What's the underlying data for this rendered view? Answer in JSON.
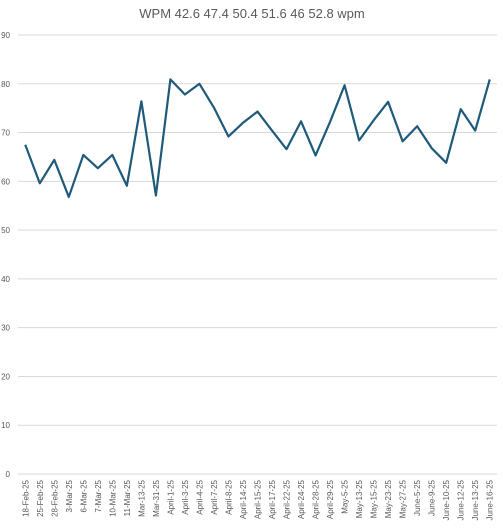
{
  "chart_data": {
    "type": "line",
    "title": "WPM 42.6 47.4 50.4 51.6 46 52.8 wpm",
    "categories": [
      "18-Feb-25",
      "25-Feb-25",
      "28-Feb-25",
      "3-Mar-25",
      "6-Mar-25",
      "7-Mar-25",
      "10-Mar-25",
      "11-Mar-25",
      "Mar-13-25",
      "Mar-31-25",
      "April-1-25",
      "April-3-25",
      "April-4-25",
      "April-7-25",
      "April-8-25",
      "April-14-25",
      "April-15-25",
      "April-17-25",
      "April-22-25",
      "April-24-25",
      "April-28-25",
      "April-29-25",
      "May-5-25",
      "May-13-25",
      "May-15-25",
      "May-23-25",
      "May-27-25",
      "June-5-25",
      "June-9-25",
      "June-10-25",
      "June-12-25",
      "June-13-25",
      "June-16-25"
    ],
    "series": [
      {
        "name": "WPM",
        "color": "#1f5a7a",
        "values": [
          67.5,
          59.6,
          64.4,
          56.8,
          65.4,
          62.7,
          65.4,
          59.1,
          76.4,
          57.1,
          80.9,
          77.8,
          80.0,
          75.1,
          69.2,
          72.0,
          74.3,
          70.4,
          66.6,
          72.3,
          65.3,
          72.2,
          79.7,
          68.4,
          72.5,
          76.3,
          68.2,
          71.3,
          66.8,
          63.8,
          74.8,
          70.4,
          80.9
        ]
      }
    ],
    "ylim": [
      0,
      90
    ],
    "yticks": [
      0,
      10,
      20,
      30,
      40,
      50,
      60,
      70,
      80,
      90
    ],
    "grid": true
  }
}
